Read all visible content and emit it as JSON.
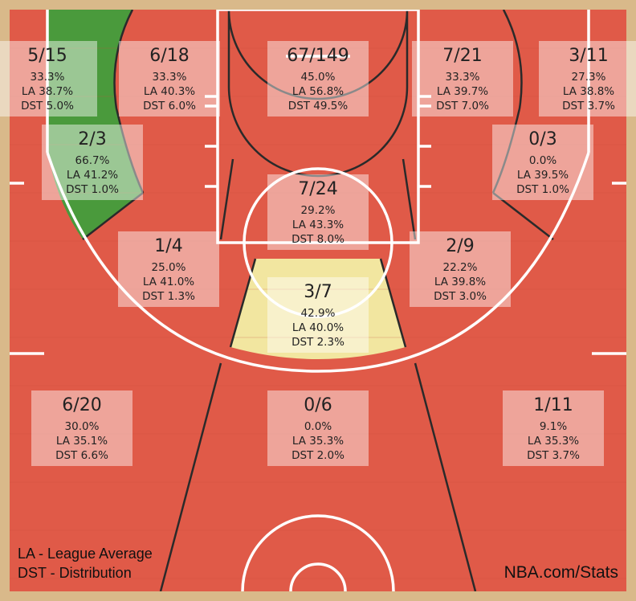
{
  "chart_data": {
    "type": "heatmap",
    "title": "",
    "zones": [
      {
        "id": "left-corner-3",
        "made": 5,
        "attempted": 15,
        "fraction": "5/15",
        "pct": "33.3%",
        "la": "LA 38.7%",
        "dst": "DST 5.0%",
        "color": "#e05a48"
      },
      {
        "id": "left-wing-3",
        "made": 6,
        "attempted": 18,
        "fraction": "6/18",
        "pct": "33.3%",
        "la": "LA 40.3%",
        "dst": "DST 6.0%",
        "color": "#e05a48"
      },
      {
        "id": "restricted-area",
        "made": 67,
        "attempted": 149,
        "fraction": "67/149",
        "pct": "45.0%",
        "la": "LA 56.8%",
        "dst": "DST 49.5%",
        "color": "#e05a48"
      },
      {
        "id": "right-wing-3",
        "made": 7,
        "attempted": 21,
        "fraction": "7/21",
        "pct": "33.3%",
        "la": "LA 39.7%",
        "dst": "DST 7.0%",
        "color": "#e05a48"
      },
      {
        "id": "right-corner-3",
        "made": 3,
        "attempted": 11,
        "fraction": "3/11",
        "pct": "27.3%",
        "la": "LA 38.8%",
        "dst": "DST 3.7%",
        "color": "#e05a48"
      },
      {
        "id": "left-baseline-mid",
        "made": 2,
        "attempted": 3,
        "fraction": "2/3",
        "pct": "66.7%",
        "la": "LA 41.2%",
        "dst": "DST 1.0%",
        "color": "#4a9a3c"
      },
      {
        "id": "right-baseline-mid",
        "made": 0,
        "attempted": 3,
        "fraction": "0/3",
        "pct": "0.0%",
        "la": "LA 39.5%",
        "dst": "DST 1.0%",
        "color": "#e05a48"
      },
      {
        "id": "paint-non-ra",
        "made": 7,
        "attempted": 24,
        "fraction": "7/24",
        "pct": "29.2%",
        "la": "LA 43.3%",
        "dst": "DST 8.0%",
        "color": "#e05a48"
      },
      {
        "id": "left-elbow-mid",
        "made": 1,
        "attempted": 4,
        "fraction": "1/4",
        "pct": "25.0%",
        "la": "LA 41.0%",
        "dst": "DST 1.3%",
        "color": "#e05a48"
      },
      {
        "id": "right-elbow-mid",
        "made": 2,
        "attempted": 9,
        "fraction": "2/9",
        "pct": "22.2%",
        "la": "LA 39.8%",
        "dst": "DST 3.0%",
        "color": "#e05a48"
      },
      {
        "id": "top-key-mid",
        "made": 3,
        "attempted": 7,
        "fraction": "3/7",
        "pct": "42.9%",
        "la": "LA 40.0%",
        "dst": "DST 2.3%",
        "color": "#f2e6a0"
      },
      {
        "id": "left-above-break-3",
        "made": 6,
        "attempted": 20,
        "fraction": "6/20",
        "pct": "30.0%",
        "la": "LA 35.1%",
        "dst": "DST 6.6%",
        "color": "#e05a48"
      },
      {
        "id": "center-above-break-3",
        "made": 0,
        "attempted": 6,
        "fraction": "0/6",
        "pct": "0.0%",
        "la": "LA 35.3%",
        "dst": "DST 2.0%",
        "color": "#e05a48"
      },
      {
        "id": "right-above-break-3",
        "made": 1,
        "attempted": 11,
        "fraction": "1/11",
        "pct": "9.1%",
        "la": "LA 35.3%",
        "dst": "DST 3.7%",
        "color": "#e05a48"
      }
    ],
    "legend": [
      "LA - League Average",
      "DST - Distribution"
    ],
    "source": "NBA.com/Stats",
    "colors": {
      "court_base": "#e05a48",
      "above_avg": "#4a9a3c",
      "near_avg": "#f2e6a0",
      "wood": "#d9b98a",
      "lines": "#ffffff",
      "zone_border": "#2a2a2a"
    }
  }
}
